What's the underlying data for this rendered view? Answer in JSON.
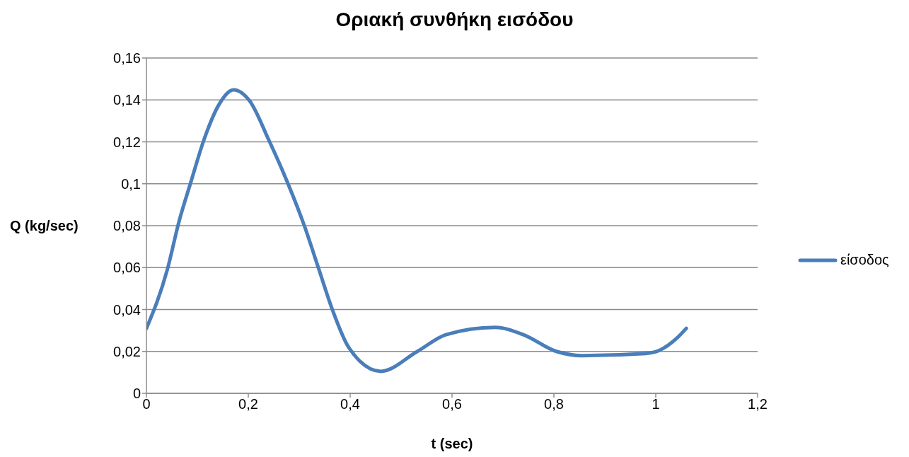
{
  "chart_data": {
    "type": "line",
    "title": "Οριακή συνθήκη εισόδου",
    "xlabel": "t (sec)",
    "ylabel": "Q (kg/sec)",
    "xlim": [
      0,
      1.2
    ],
    "xticks": [
      0,
      {
        "value": 0.2,
        "label": "0,2"
      },
      {
        "value": 0.4,
        "label": "0,4"
      },
      {
        "value": 0.6,
        "label": "0,6"
      },
      {
        "value": 0.8,
        "label": "0,8"
      },
      1,
      {
        "value": 1.2,
        "label": "1,2"
      }
    ],
    "ylim": [
      0,
      0.16
    ],
    "yticks": [
      0,
      {
        "value": 0.02,
        "label": "0,02"
      },
      {
        "value": 0.04,
        "label": "0,04"
      },
      {
        "value": 0.06,
        "label": "0,06"
      },
      {
        "value": 0.08,
        "label": "0,08"
      },
      {
        "value": 0.1,
        "label": "0,1"
      },
      {
        "value": 0.12,
        "label": "0,12"
      },
      {
        "value": 0.14,
        "label": "0,14"
      },
      {
        "value": 0.16,
        "label": "0,16"
      }
    ],
    "grid": "y",
    "legend": "right",
    "marker": "none",
    "line_style": "solid",
    "series": [
      {
        "name": "είσοδος",
        "color": "#4a7ebb",
        "x": [
          0,
          0.041,
          0.064,
          0.0875,
          0.113,
          0.143,
          0.171,
          0.203,
          0.24,
          0.278,
          0.31,
          0.3375,
          0.365,
          0.397,
          0.46,
          0.532,
          0.588,
          0.685,
          0.74,
          0.805,
          0.855,
          0.98,
          1.008,
          1.04,
          1.06
        ],
        "values": [
          0.031,
          0.059,
          0.082,
          0.101,
          0.121,
          0.138,
          0.1448,
          0.1394,
          0.121,
          0.1,
          0.08,
          0.06,
          0.04,
          0.022,
          0.0105,
          0.02,
          0.028,
          0.0315,
          0.028,
          0.02,
          0.018,
          0.019,
          0.0206,
          0.026,
          0.031
        ]
      }
    ]
  }
}
